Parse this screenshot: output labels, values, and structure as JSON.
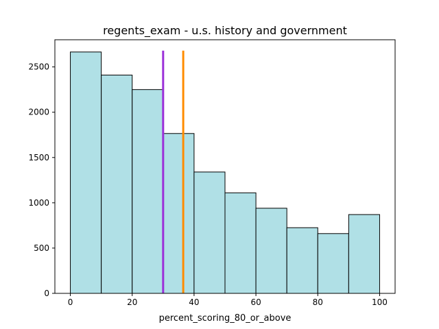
{
  "chart_data": {
    "type": "histogram",
    "title": "regents_exam - u.s. history and government",
    "xlabel": "percent_scoring_80_or_above",
    "ylabel": "",
    "bins": [
      {
        "x0": 0,
        "x1": 10,
        "count": 2665
      },
      {
        "x0": 10,
        "x1": 20,
        "count": 2410
      },
      {
        "x0": 20,
        "x1": 30,
        "count": 2250
      },
      {
        "x0": 30,
        "x1": 40,
        "count": 1765
      },
      {
        "x0": 40,
        "x1": 50,
        "count": 1340
      },
      {
        "x0": 50,
        "x1": 60,
        "count": 1110
      },
      {
        "x0": 60,
        "x1": 70,
        "count": 940
      },
      {
        "x0": 70,
        "x1": 80,
        "count": 725
      },
      {
        "x0": 80,
        "x1": 90,
        "count": 660
      },
      {
        "x0": 90,
        "x1": 100,
        "count": 870
      }
    ],
    "xlim": [
      -5,
      105
    ],
    "ylim": [
      0,
      2800
    ],
    "xticks": [
      0,
      20,
      40,
      60,
      80,
      100
    ],
    "yticks": [
      0,
      500,
      1000,
      1500,
      2000,
      2500
    ],
    "reference_lines": [
      {
        "x": 30,
        "color": "#9b30d9"
      },
      {
        "x": 36.5,
        "color": "#ff8c00"
      }
    ],
    "bar_fill": "#b0e0e6",
    "bar_edge": "#000000",
    "grid": false
  }
}
